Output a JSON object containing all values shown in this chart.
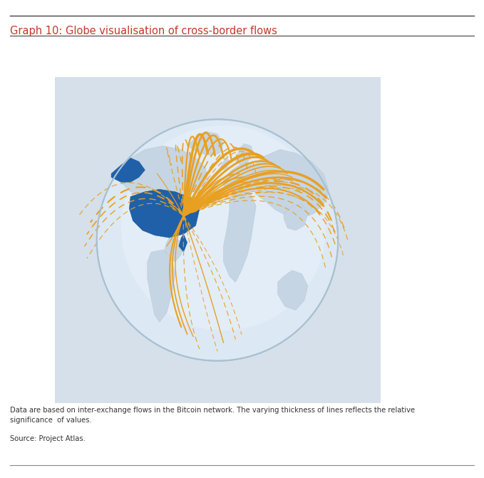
{
  "title": "Graph 10: Globe visualisation of cross-border flows",
  "title_color": "#c0392b",
  "note_line1": "Data are based on inter-exchange flows in the Bitcoin network. The varying thickness of lines reflects the relative",
  "note_line2": "significance  of values.",
  "source": "Source: Project Atlas.",
  "bg_color": "#ffffff",
  "globe_bg": "#d8e2ec",
  "ocean_color": "#dce8f5",
  "land_color": "#c8d8e8",
  "usa_color": "#2060a8",
  "flow_color": "#e8a020",
  "title_color_hex": "#c0392b"
}
